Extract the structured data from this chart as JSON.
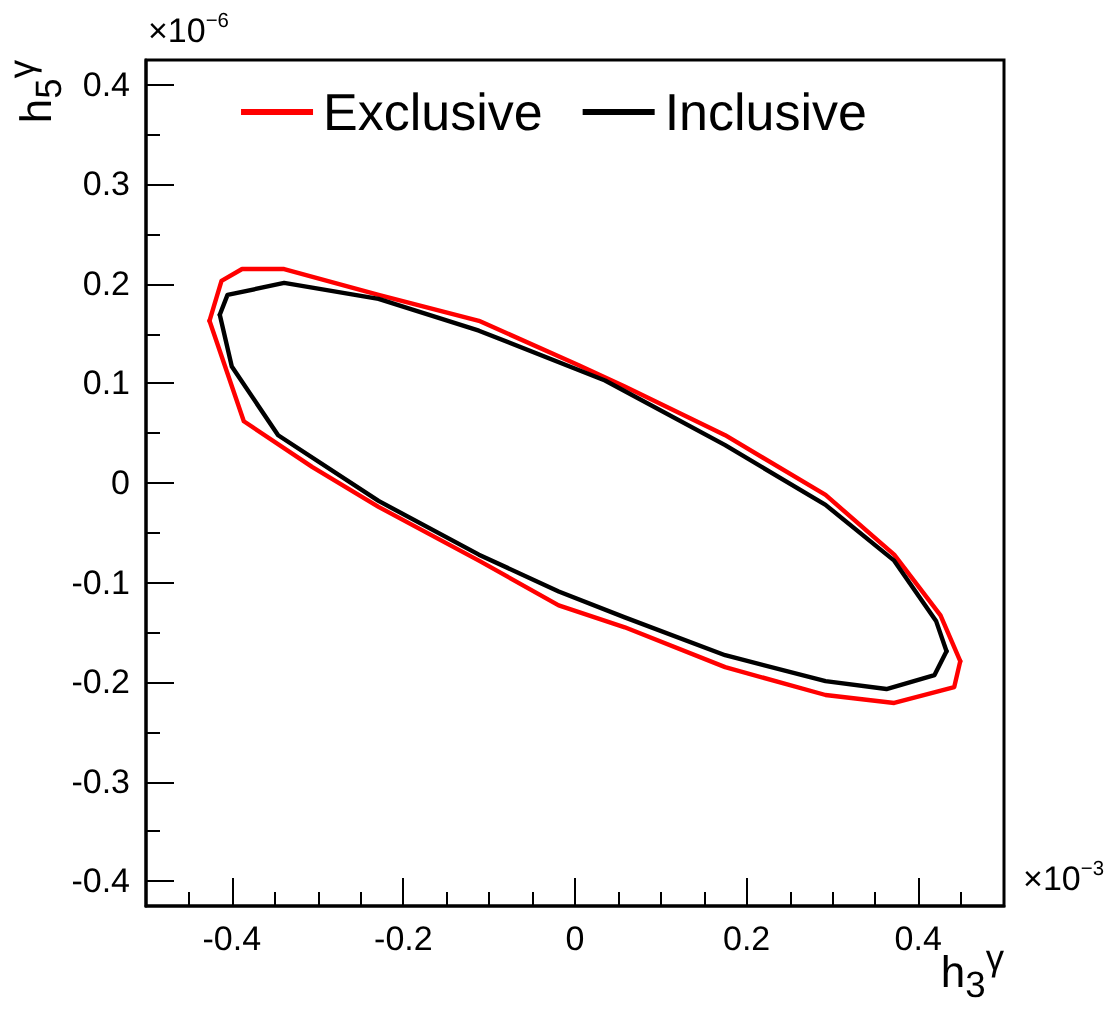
{
  "chart_data": {
    "type": "line",
    "xlabel": "h$_{3}$$^{γ}$",
    "ylabel": "h$_{5}$$^{γ}$",
    "annotations": [
      "×10$^{−3}$",
      "×10$^{−6}$"
    ],
    "xlim": [
      -0.5,
      0.5
    ],
    "xticks": [
      -0.4,
      -0.2,
      0,
      0.2,
      0.4
    ],
    "ylim": [
      -0.425,
      0.425
    ],
    "yticks": [
      -0.4,
      -0.3,
      -0.2,
      -0.1,
      0,
      0.1,
      0.2,
      0.3,
      0.4
    ],
    "legend": "top",
    "grid": false,
    "marker": "none",
    "line_style": "solid",
    "series": [
      {
        "name": "Exclusive",
        "color": "#ff0000",
        "x": [
          -0.426,
          -0.412,
          -0.388,
          -0.339,
          -0.229,
          -0.112,
          0.005,
          0.058,
          0.175,
          0.292,
          0.372,
          0.426,
          0.449
        ],
        "values": [
          0.163,
          0.203,
          0.215,
          0.215,
          0.189,
          0.163,
          0.118,
          0.097,
          0.048,
          -0.012,
          -0.072,
          -0.133,
          -0.179
        ]
      },
      {
        "color": "#ff0000",
        "x": [
          -0.426,
          -0.386,
          -0.306,
          -0.229,
          -0.112,
          -0.019,
          0.058,
          0.175,
          0.292,
          0.372,
          0.442,
          0.449
        ],
        "values": [
          0.163,
          0.062,
          0.016,
          -0.024,
          -0.078,
          -0.123,
          -0.145,
          -0.185,
          -0.213,
          -0.221,
          -0.205,
          -0.179
        ]
      },
      {
        "name": "Inclusive",
        "color": "#000000",
        "x": [
          -0.414,
          -0.405,
          -0.339,
          -0.229,
          -0.112,
          0.035,
          0.175,
          0.292,
          0.372,
          0.421,
          0.433
        ],
        "values": [
          0.169,
          0.189,
          0.201,
          0.185,
          0.153,
          0.103,
          0.038,
          -0.022,
          -0.078,
          -0.139,
          -0.169
        ]
      },
      {
        "color": "#000000",
        "x": [
          -0.414,
          -0.4,
          -0.346,
          -0.229,
          -0.112,
          -0.019,
          0.058,
          0.175,
          0.292,
          0.363,
          0.419,
          0.433
        ],
        "values": [
          0.169,
          0.117,
          0.048,
          -0.018,
          -0.072,
          -0.109,
          -0.135,
          -0.173,
          -0.199,
          -0.207,
          -0.193,
          -0.169
        ]
      }
    ]
  }
}
